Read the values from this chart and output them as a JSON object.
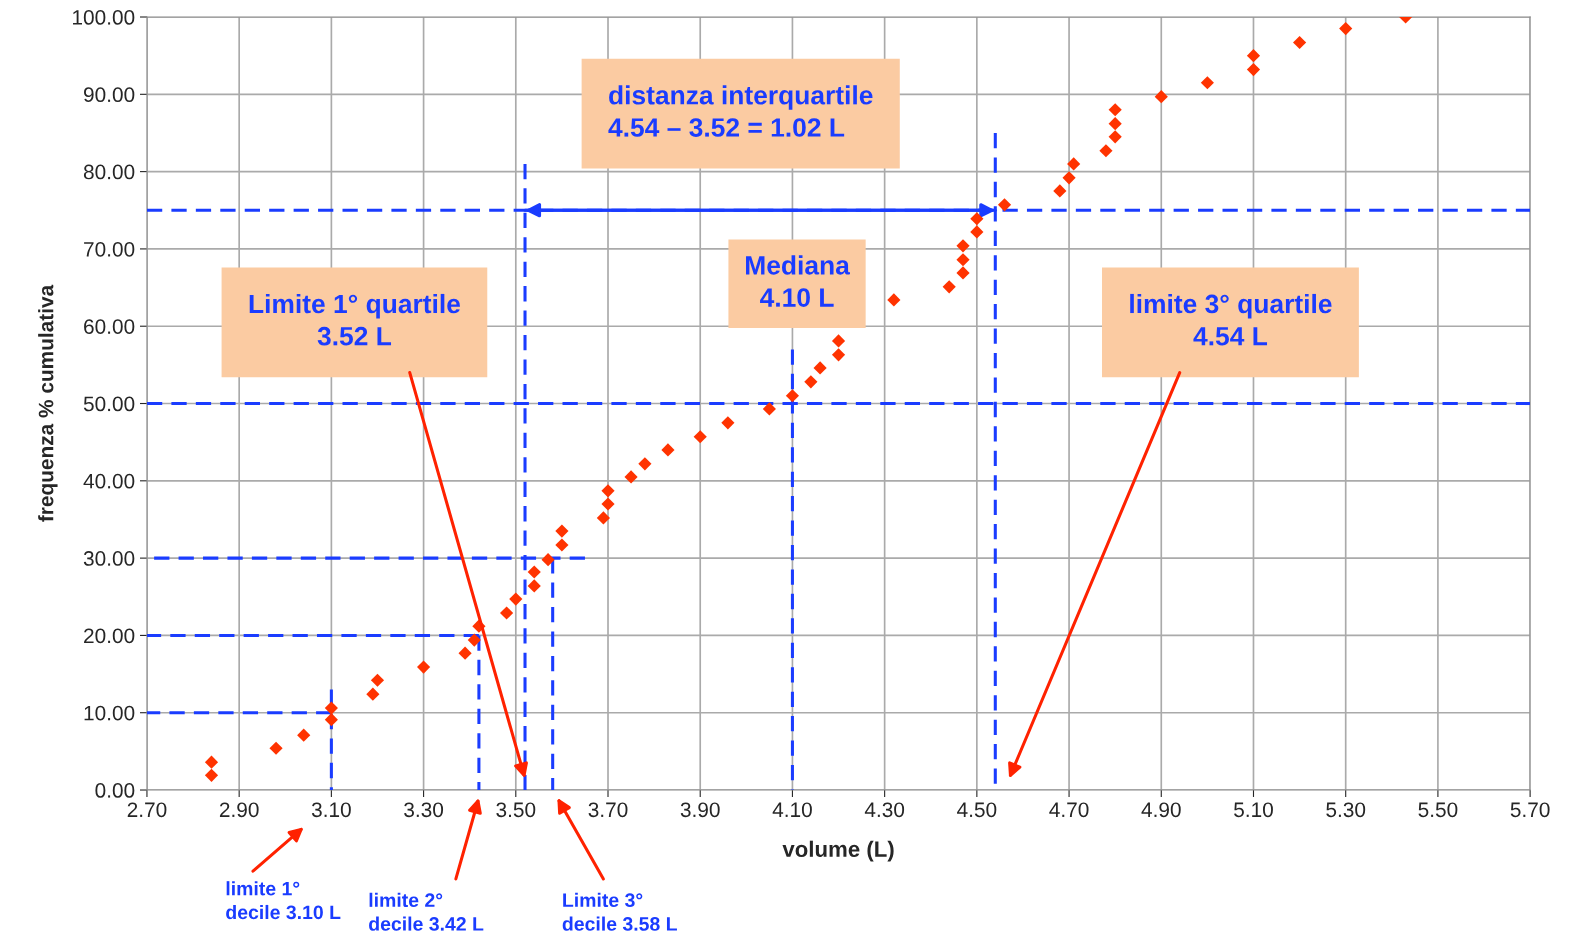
{
  "chart_data": {
    "type": "scatter",
    "xlabel": "volume (L)",
    "ylabel": "frequenza % cumulativa",
    "xlim": [
      2.7,
      5.7
    ],
    "ylim": [
      0,
      100
    ],
    "xticks": [
      {
        "value": 2.7,
        "label": "2.70"
      },
      {
        "value": 2.9,
        "label": "2.90"
      },
      {
        "value": 3.1,
        "label": "3.10"
      },
      {
        "value": 3.3,
        "label": "3.30"
      },
      {
        "value": 3.5,
        "label": "3.50"
      },
      {
        "value": 3.7,
        "label": "3.70"
      },
      {
        "value": 3.9,
        "label": "3.90"
      },
      {
        "value": 4.1,
        "label": "4.10"
      },
      {
        "value": 4.3,
        "label": "4.30"
      },
      {
        "value": 4.5,
        "label": "4.50"
      },
      {
        "value": 4.7,
        "label": "4.70"
      },
      {
        "value": 4.9,
        "label": "4.90"
      },
      {
        "value": 5.1,
        "label": "5.10"
      },
      {
        "value": 5.3,
        "label": "5.30"
      },
      {
        "value": 5.5,
        "label": "5.50"
      },
      {
        "value": 5.7,
        "label": "5.70"
      }
    ],
    "yticks": [
      {
        "value": 0,
        "label": "0.00"
      },
      {
        "value": 10,
        "label": "10.00"
      },
      {
        "value": 20,
        "label": "20.00"
      },
      {
        "value": 30,
        "label": "30.00"
      },
      {
        "value": 40,
        "label": "40.00"
      },
      {
        "value": 50,
        "label": "50.00"
      },
      {
        "value": 60,
        "label": "60.00"
      },
      {
        "value": 70,
        "label": "70.00"
      },
      {
        "value": 80,
        "label": "80.00"
      },
      {
        "value": 90,
        "label": "90.00"
      },
      {
        "value": 100,
        "label": "100.00"
      }
    ],
    "grid": true,
    "marker": "diamond",
    "series": [
      {
        "type": "scatter",
        "color": "#ff3300",
        "x": [
          2.84,
          2.84,
          2.98,
          3.04,
          3.1,
          3.1,
          3.19,
          3.2,
          3.3,
          3.39,
          3.41,
          3.42,
          3.48,
          3.5,
          3.54,
          3.54,
          3.57,
          3.6,
          3.6,
          3.69,
          3.7,
          3.7,
          3.75,
          3.78,
          3.83,
          3.9,
          3.96,
          4.05,
          4.1,
          4.14,
          4.16,
          4.2,
          4.2,
          4.32,
          4.44,
          4.47,
          4.47,
          4.47,
          4.5,
          4.5,
          4.56,
          4.68,
          4.7,
          4.71,
          4.78,
          4.8,
          4.8,
          4.8,
          4.9,
          5.0,
          5.1,
          5.1,
          5.2,
          5.3,
          5.43
        ],
        "values": [
          3.6,
          1.9,
          5.4,
          7.1,
          10.6,
          9.1,
          12.4,
          14.2,
          15.9,
          17.7,
          19.4,
          21.2,
          22.9,
          24.7,
          26.4,
          28.2,
          29.8,
          31.7,
          33.5,
          35.2,
          37.0,
          38.7,
          40.5,
          42.2,
          44.0,
          45.7,
          47.5,
          49.3,
          51.0,
          52.8,
          54.6,
          56.3,
          58.1,
          63.4,
          65.1,
          66.9,
          68.6,
          70.4,
          72.2,
          73.9,
          75.7,
          77.5,
          79.2,
          81.0,
          82.7,
          84.5,
          86.2,
          88.0,
          89.7,
          91.5,
          93.2,
          95.0,
          96.7,
          98.5,
          100
        ]
      },
      {
        "type": "line",
        "color": "#1a3cff",
        "line_style": "dashed",
        "marker": "none",
        "x": [
          2.7,
          3.1
        ],
        "values": [
          10,
          10
        ]
      },
      {
        "type": "line",
        "color": "#1a3cff",
        "line_style": "dashed",
        "marker": "none",
        "x": [
          2.7,
          3.42
        ],
        "values": [
          20,
          20
        ]
      },
      {
        "type": "line",
        "color": "#1a3cff",
        "line_style": "dashed",
        "marker": "none",
        "x": [
          2.7,
          3.65
        ],
        "values": [
          30,
          30
        ]
      },
      {
        "type": "line",
        "color": "#1a3cff",
        "line_style": "dashed",
        "marker": "none",
        "x": [
          3.1,
          3.1
        ],
        "values": [
          0,
          13
        ]
      },
      {
        "type": "line",
        "color": "#1a3cff",
        "line_style": "dashed",
        "marker": "none",
        "x": [
          3.42,
          3.42
        ],
        "values": [
          0,
          20
        ]
      },
      {
        "type": "line",
        "color": "#1a3cff",
        "line_style": "dashed",
        "marker": "none",
        "x": [
          3.52,
          3.52
        ],
        "values": [
          0,
          81
        ]
      },
      {
        "type": "line",
        "color": "#1a3cff",
        "line_style": "dashed",
        "marker": "none",
        "x": [
          3.58,
          3.58
        ],
        "values": [
          0,
          30
        ]
      },
      {
        "type": "line",
        "color": "#1a3cff",
        "line_style": "dashed",
        "marker": "none",
        "x": [
          4.1,
          4.1
        ],
        "values": [
          0,
          57
        ]
      },
      {
        "type": "line",
        "color": "#1a3cff",
        "line_style": "dashed",
        "marker": "none",
        "x": [
          4.54,
          4.54
        ],
        "values": [
          0,
          85
        ]
      },
      {
        "type": "line",
        "color": "#1a3cff",
        "line_style": "solid",
        "marker": "none",
        "x": [
          3.52,
          4.54
        ],
        "values": [
          75,
          75
        ]
      }
    ],
    "ref_lines": [
      {
        "axis": "y",
        "value": 75,
        "color": "#1a3cff",
        "line_style": "dashed"
      },
      {
        "axis": "y",
        "value": 50,
        "color": "#1a3cff",
        "line_style": "dashed"
      }
    ],
    "annotations": [
      {
        "text": "Limite 1° quartile\n3.52 L",
        "x": 3.52,
        "y": 1.5
      },
      "Mediana\n4.10 L",
      "limite 3° quartile\n4.54 L",
      "distanza interquartile\n4.54 – 3.52 = 1.02 L",
      "limite 1°\ndecile 3.10 L",
      "limite 2°\ndecile 3.42 L",
      "Limite 3°\ndecile 3.58 L"
    ]
  }
}
